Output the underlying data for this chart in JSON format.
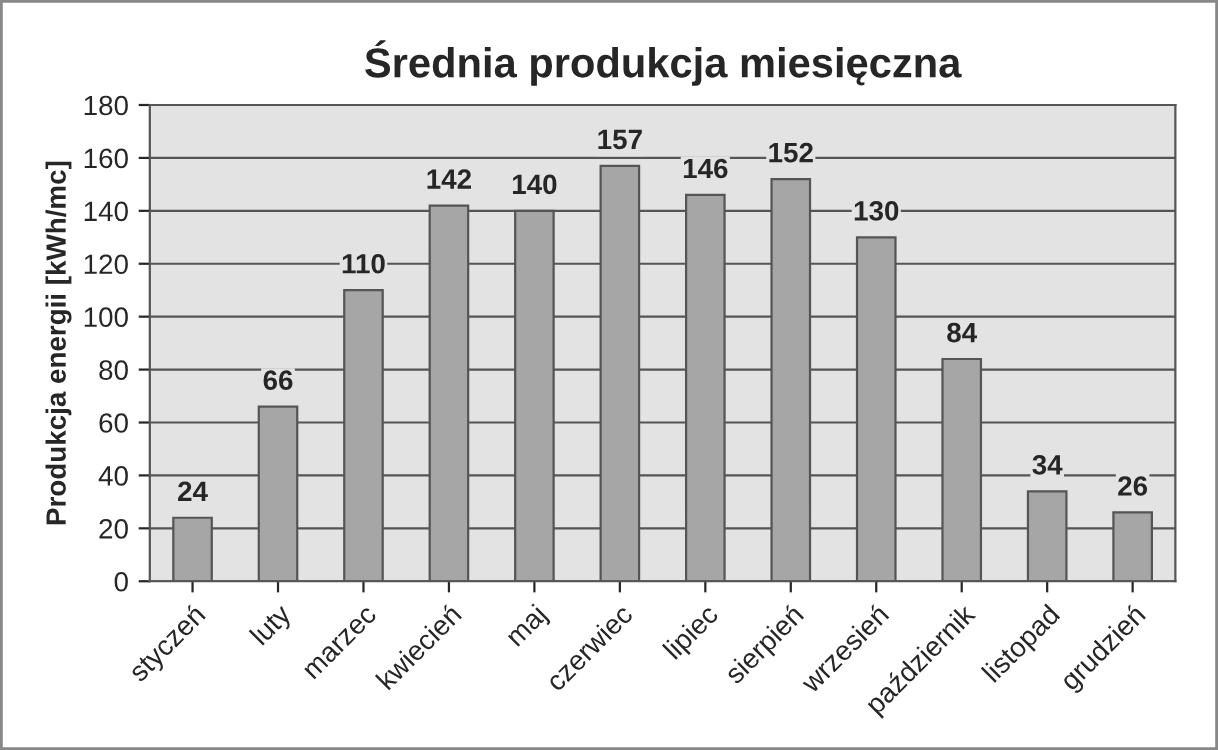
{
  "chart_data": {
    "type": "bar",
    "title": "Średnia produkcja miesięczna",
    "ylabel": "Produkcja energii [kWh/mc]",
    "categories": [
      "styczeń",
      "luty",
      "marzec",
      "kwiecień",
      "maj",
      "czerwiec",
      "lipiec",
      "sierpień",
      "wrzesień",
      "październik",
      "listopad",
      "grudzień"
    ],
    "values": [
      24,
      66,
      110,
      142,
      140,
      157,
      146,
      152,
      130,
      84,
      34,
      26
    ],
    "color": "#a6a6a6",
    "ylim": [
      0,
      180
    ],
    "yticks": [
      0,
      20,
      40,
      60,
      80,
      100,
      120,
      140,
      160,
      180
    ],
    "grid": "y",
    "data_labels": true
  }
}
